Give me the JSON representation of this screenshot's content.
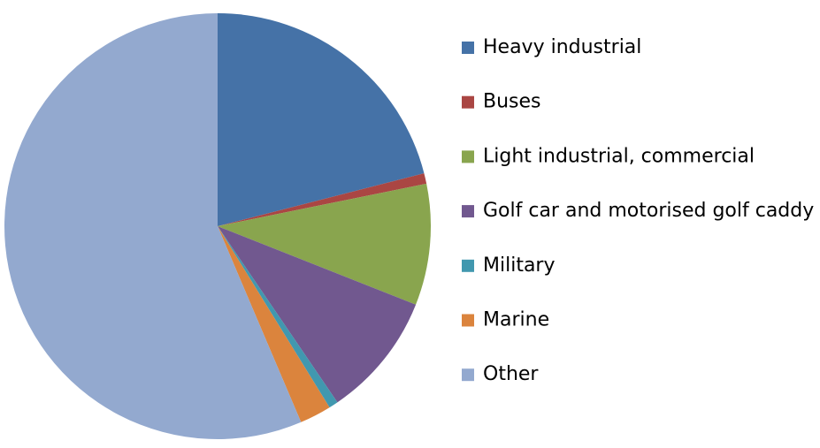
{
  "chart_data": {
    "type": "pie",
    "categories": [
      "Heavy industrial",
      "Buses",
      "Light industrial, commercial",
      "Golf car and motorised golf caddy",
      "Military",
      "Marine",
      "Other"
    ],
    "values": [
      21,
      0.8,
      9.2,
      9.5,
      0.7,
      2.4,
      56.4
    ],
    "colors": [
      "#4572a7",
      "#aa4643",
      "#89a54e",
      "#71588f",
      "#4198af",
      "#db843d",
      "#93a9cf"
    ],
    "legend": "right"
  }
}
